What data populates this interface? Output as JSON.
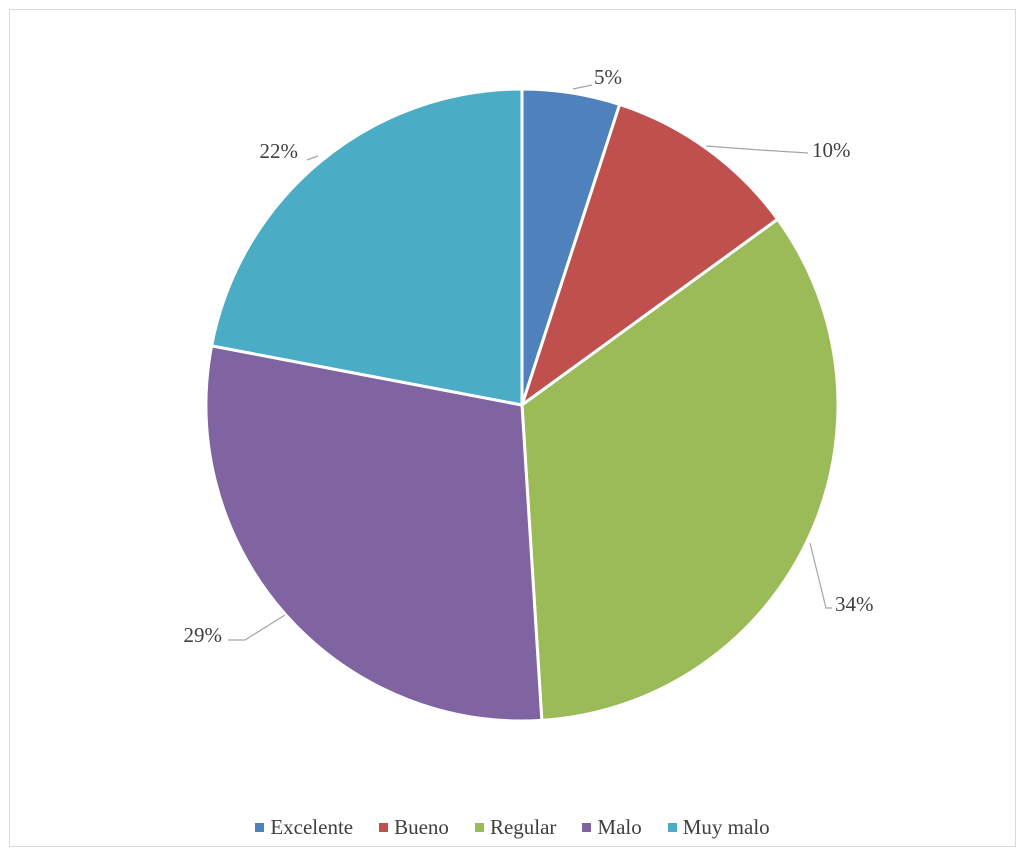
{
  "chart_data": {
    "type": "pie",
    "categories": [
      "Excelente",
      "Bueno",
      "Regular",
      "Malo",
      "Muy malo"
    ],
    "values": [
      5,
      10,
      34,
      29,
      22
    ],
    "labels": [
      "5%",
      "10%",
      "34%",
      "29%",
      "22%"
    ],
    "colors": [
      "#4F81BD",
      "#C0504D",
      "#9BBB59",
      "#8064A2",
      "#4BACC6"
    ],
    "title": "",
    "legend_position": "bottom"
  }
}
